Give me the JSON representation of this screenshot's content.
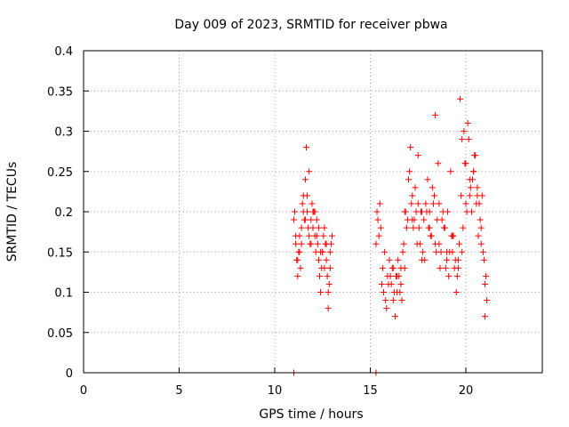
{
  "chart_data": {
    "type": "scatter",
    "title": "Day 009 of 2023, SRMTID for receiver pbwa",
    "xlabel": "GPS time / hours",
    "ylabel": "SRMTID / TECUs",
    "xlim": [
      0,
      24
    ],
    "ylim": [
      0,
      0.4
    ],
    "xticks": [
      0,
      5,
      10,
      15,
      20
    ],
    "yticks": [
      0,
      0.05,
      0.1,
      0.15,
      0.2,
      0.25,
      0.3,
      0.35,
      0.4
    ],
    "grid": true,
    "legend": "none",
    "marker": "plus",
    "color": "#ff0000",
    "series": [
      {
        "x": [
          11.0,
          11.05,
          11.1,
          11.15,
          11.2,
          11.25,
          11.3,
          11.35,
          11.4,
          11.45,
          11.5,
          11.55,
          11.6,
          11.65,
          11.7,
          11.75,
          11.8,
          11.85,
          11.9,
          11.95,
          12.0,
          12.05,
          12.1,
          12.15,
          12.2,
          12.25,
          12.3,
          12.35,
          12.4,
          12.45,
          12.5,
          12.55,
          12.6,
          12.65,
          12.7,
          12.75,
          12.8,
          12.85,
          12.9,
          12.95,
          13.0,
          11.1,
          11.3,
          11.5,
          11.7,
          11.9,
          12.1,
          12.3,
          12.5,
          12.7,
          12.9,
          11.2,
          11.4,
          11.6,
          11.8,
          12.0,
          12.2,
          12.4,
          12.6,
          12.8,
          15.3,
          15.4,
          15.5,
          15.6,
          15.7,
          15.8,
          15.9,
          16.0,
          16.1,
          16.2,
          16.3,
          16.4,
          16.5,
          16.6,
          16.7,
          16.8,
          16.9,
          17.0,
          17.1,
          17.2,
          17.3,
          17.4,
          17.5,
          17.6,
          17.7,
          17.8,
          17.9,
          18.0,
          18.1,
          18.2,
          18.3,
          18.4,
          18.5,
          18.6,
          18.7,
          18.8,
          18.9,
          19.0,
          19.1,
          19.2,
          19.3,
          19.4,
          19.5,
          19.6,
          19.7,
          19.8,
          19.9,
          20.0,
          20.1,
          20.2,
          20.3,
          20.4,
          20.5,
          20.6,
          20.7,
          20.8,
          20.9,
          21.0,
          21.1,
          15.35,
          15.55,
          15.75,
          15.95,
          16.15,
          16.35,
          16.55,
          16.75,
          16.95,
          17.15,
          17.35,
          17.55,
          17.75,
          17.95,
          18.15,
          18.35,
          18.55,
          18.75,
          18.95,
          19.15,
          19.35,
          19.55,
          19.75,
          19.95,
          20.15,
          20.35,
          20.55,
          20.75,
          20.95,
          15.45,
          15.65,
          15.85,
          16.05,
          16.25,
          16.45,
          16.65,
          16.85,
          17.05,
          17.25,
          17.45,
          17.65,
          17.85,
          18.05,
          18.25,
          18.45,
          18.65,
          18.85,
          19.05,
          19.25,
          19.45,
          19.65,
          19.85,
          20.05,
          20.25,
          20.45,
          20.65,
          20.85,
          21.05,
          16.2,
          16.4,
          16.6,
          16.8,
          17.2,
          17.5,
          17.7,
          18.1,
          18.4,
          18.6,
          19.0,
          19.3,
          19.6,
          19.8,
          20.0,
          20.2,
          20.4,
          20.6,
          20.8,
          21.0,
          11.0,
          15.3
        ],
        "y": [
          0.19,
          0.2,
          0.16,
          0.14,
          0.12,
          0.15,
          0.17,
          0.13,
          0.18,
          0.21,
          0.22,
          0.19,
          0.24,
          0.28,
          0.2,
          0.18,
          0.17,
          0.16,
          0.19,
          0.21,
          0.18,
          0.2,
          0.17,
          0.15,
          0.19,
          0.16,
          0.14,
          0.12,
          0.1,
          0.13,
          0.15,
          0.17,
          0.18,
          0.16,
          0.14,
          0.12,
          0.08,
          0.11,
          0.15,
          0.16,
          0.17,
          0.17,
          0.15,
          0.2,
          0.22,
          0.16,
          0.2,
          0.18,
          0.15,
          0.16,
          0.13,
          0.14,
          0.16,
          0.19,
          0.25,
          0.2,
          0.17,
          0.15,
          0.13,
          0.1,
          0.16,
          0.19,
          0.21,
          0.11,
          0.1,
          0.09,
          0.12,
          0.14,
          0.11,
          0.09,
          0.07,
          0.1,
          0.12,
          0.13,
          0.15,
          0.2,
          0.18,
          0.24,
          0.28,
          0.22,
          0.19,
          0.2,
          0.21,
          0.16,
          0.14,
          0.19,
          0.21,
          0.24,
          0.18,
          0.17,
          0.21,
          0.32,
          0.19,
          0.16,
          0.15,
          0.2,
          0.18,
          0.14,
          0.12,
          0.25,
          0.15,
          0.13,
          0.1,
          0.14,
          0.34,
          0.29,
          0.3,
          0.26,
          0.31,
          0.22,
          0.2,
          0.25,
          0.27,
          0.23,
          0.21,
          0.18,
          0.15,
          0.11,
          0.09,
          0.2,
          0.18,
          0.15,
          0.11,
          0.13,
          0.12,
          0.1,
          0.16,
          0.19,
          0.21,
          0.23,
          0.18,
          0.15,
          0.2,
          0.17,
          0.22,
          0.26,
          0.19,
          0.13,
          0.15,
          0.17,
          0.12,
          0.22,
          0.26,
          0.29,
          0.24,
          0.21,
          0.19,
          0.14,
          0.17,
          0.13,
          0.08,
          0.12,
          0.1,
          0.14,
          0.09,
          0.2,
          0.25,
          0.18,
          0.16,
          0.2,
          0.14,
          0.18,
          0.23,
          0.15,
          0.13,
          0.18,
          0.2,
          0.17,
          0.14,
          0.16,
          0.18,
          0.2,
          0.23,
          0.27,
          0.17,
          0.22,
          0.12,
          0.13,
          0.12,
          0.11,
          0.13,
          0.19,
          0.27,
          0.2,
          0.2,
          0.16,
          0.21,
          0.15,
          0.17,
          0.13,
          0.15,
          0.21,
          0.24,
          0.25,
          0.22,
          0.16,
          0.07,
          0.0,
          0.0
        ]
      }
    ]
  }
}
